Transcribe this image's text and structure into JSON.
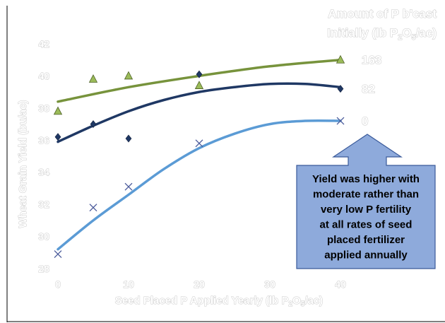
{
  "chart_data": {
    "type": "scatter",
    "title_lines": [
      "Amount of P b'cast",
      "Initially (lb P2O5/ac)"
    ],
    "xlabel": "Seed Placed P Applied Yearly (lb P2O5/ac)",
    "ylabel": "Wheat Grain Yield (bu/ac)",
    "xlim": [
      0,
      45
    ],
    "ylim": [
      28,
      42
    ],
    "x_ticks": [
      "0",
      "10",
      "20",
      "30",
      "40"
    ],
    "y_ticks": [
      "28",
      "30",
      "32",
      "34",
      "36",
      "38",
      "40",
      "42"
    ],
    "grid": false,
    "series": [
      {
        "name": "163",
        "marker": "triangle",
        "color": "#77933c",
        "trend_color": "#77933c",
        "x": [
          0,
          5,
          10,
          20,
          40
        ],
        "y": [
          37.8,
          39.8,
          40.0,
          39.4,
          41.0
        ],
        "trend_x": [
          0,
          10,
          20,
          30,
          40
        ],
        "trend_y": [
          38.4,
          39.3,
          40.0,
          40.6,
          41.0
        ]
      },
      {
        "name": "82",
        "marker": "diamond",
        "color": "#1f3864",
        "trend_color": "#1f3864",
        "x": [
          0,
          5,
          10,
          20,
          40
        ],
        "y": [
          36.2,
          37.0,
          36.1,
          40.1,
          39.2
        ],
        "trend_x": [
          0,
          5,
          10,
          15,
          20,
          25,
          30,
          35,
          40
        ],
        "trend_y": [
          35.9,
          36.9,
          37.8,
          38.5,
          39.0,
          39.3,
          39.5,
          39.5,
          39.3
        ]
      },
      {
        "name": "0",
        "marker": "x",
        "color": "#4a5a9a",
        "trend_color": "#5b9bd5",
        "x": [
          0,
          5,
          10,
          20,
          40
        ],
        "y": [
          28.9,
          31.8,
          33.1,
          35.8,
          37.2
        ],
        "trend_x": [
          0,
          5,
          10,
          15,
          20,
          25,
          30,
          35,
          40
        ],
        "trend_y": [
          29.2,
          31.0,
          32.6,
          34.2,
          35.5,
          36.4,
          37.0,
          37.2,
          37.2
        ]
      }
    ],
    "annotation": "Yield was higher with moderate rather than very low P fertility at all rates of seed placed fertilizer applied annually"
  },
  "callout": {
    "lines": [
      "Yield was higher with",
      "moderate rather than",
      "very low P fertility",
      "at all rates of seed",
      "placed fertilizer",
      "applied annually"
    ],
    "fill": "#8eaadb",
    "stroke": "#3a5a9a"
  }
}
